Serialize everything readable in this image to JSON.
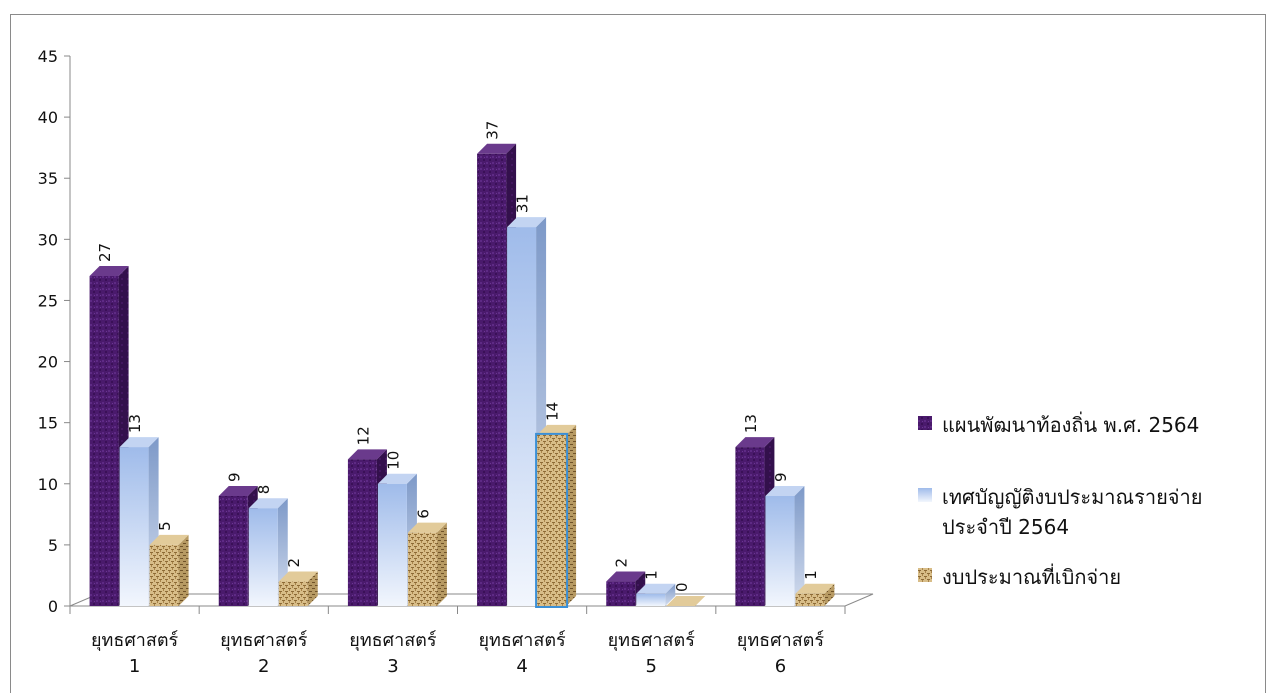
{
  "chart_data": {
    "type": "bar",
    "categories": [
      [
        "ยุทธศาสตร์",
        "1"
      ],
      [
        "ยุทธศาสตร์",
        "2"
      ],
      [
        "ยุทธศาสตร์",
        "3"
      ],
      [
        "ยุทธศาสตร์",
        "4"
      ],
      [
        "ยุทธศาสตร์",
        "5"
      ],
      [
        "ยุทธศาสตร์",
        "6"
      ]
    ],
    "series": [
      {
        "name": "แผนพัฒนาท้องถิ่น พ.ศ. 2564",
        "values": [
          27,
          9,
          12,
          37,
          2,
          13
        ],
        "color": "#4b1a6e"
      },
      {
        "name": "เทศบัญญัติงบประมาณรายจ่ายประจำปี 2564",
        "legend_lines": [
          "เทศบัญญัติงบประมาณรายจ่าย",
          "ประจำปี 2564"
        ],
        "values": [
          13,
          8,
          10,
          31,
          1,
          9
        ],
        "color": "#a9c4ee"
      },
      {
        "name": "งบประมาณที่เบิกจ่าย",
        "values": [
          5,
          2,
          6,
          14,
          0,
          1
        ],
        "color": "#c8a46a"
      }
    ],
    "ylim": [
      0,
      45
    ],
    "yticks": [
      0,
      5,
      10,
      15,
      20,
      25,
      30,
      35,
      40,
      45
    ],
    "data_labels": true,
    "legend_position": "right",
    "grid": false,
    "style": "3d-column"
  }
}
